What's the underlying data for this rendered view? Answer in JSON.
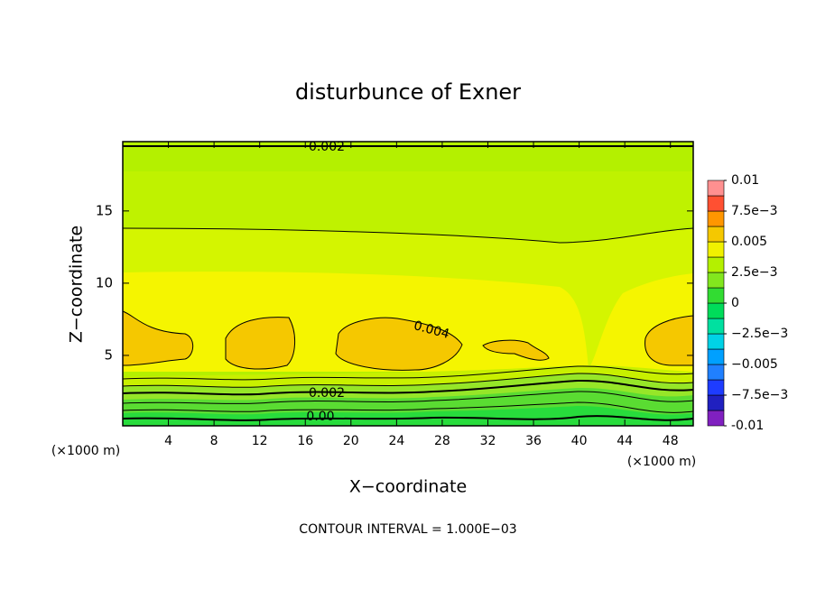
{
  "chart_data": {
    "type": "contour",
    "title": "disturbunce of Exner",
    "x_label": "X−coordinate",
    "y_label": "Z−coordinate",
    "x_unit": "(×1000 m)",
    "y_unit": "(×1000 m)",
    "footnote": "CONTOUR INTERVAL = 1.000E−03",
    "xlim": [
      0,
      50
    ],
    "xticks": [
      4,
      8,
      12,
      16,
      20,
      24,
      28,
      32,
      36,
      40,
      44,
      48
    ],
    "ylim": [
      0.125,
      19.8
    ],
    "yticks": [
      5,
      10,
      15
    ],
    "contour_labels": [
      "0.002",
      "0.004",
      "0.002",
      "0.00"
    ],
    "colorbar": {
      "range": [
        -0.01,
        0.01
      ],
      "colors": [
        "#8020c0",
        "#2020c0",
        "#1e3cff",
        "#2080ff",
        "#00a0ff",
        "#00d2e6",
        "#00e0a0",
        "#00dc5a",
        "#32dc32",
        "#82e61e",
        "#b4f000",
        "#f0f000",
        "#f5c800",
        "#ff9600",
        "#ff5032",
        "#ff9090"
      ],
      "ticks": [
        -0.01,
        {
          "value": -0.0075,
          "label": "−7.5e−3"
        },
        {
          "value": -0.005,
          "label": "−0.005"
        },
        {
          "value": -0.0025,
          "label": "−2.5e−3"
        },
        0,
        {
          "value": 0.0025,
          "label": "2.5e−3"
        },
        0.005,
        {
          "value": 0.0075,
          "label": "7.5e−3"
        },
        0.01
      ]
    }
  }
}
